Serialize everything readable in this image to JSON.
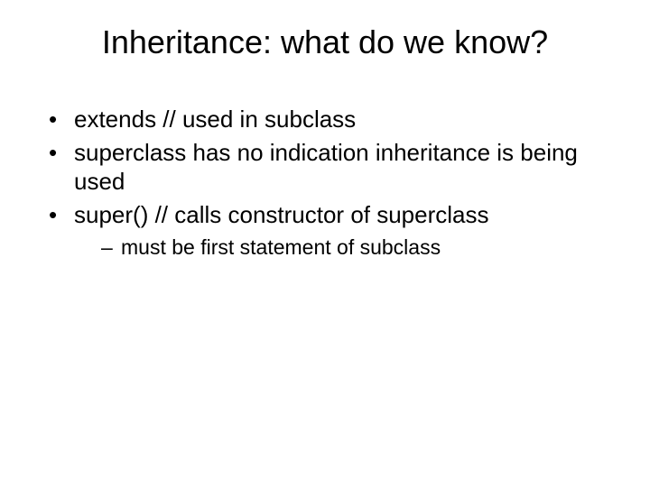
{
  "title": "Inheritance: what do we know?",
  "bullets": {
    "b1": "extends  // used in subclass",
    "b2": "superclass has no indication inheritance is being used",
    "b3": "super() // calls constructor of superclass",
    "b3_sub1": "must be first statement of subclass"
  }
}
